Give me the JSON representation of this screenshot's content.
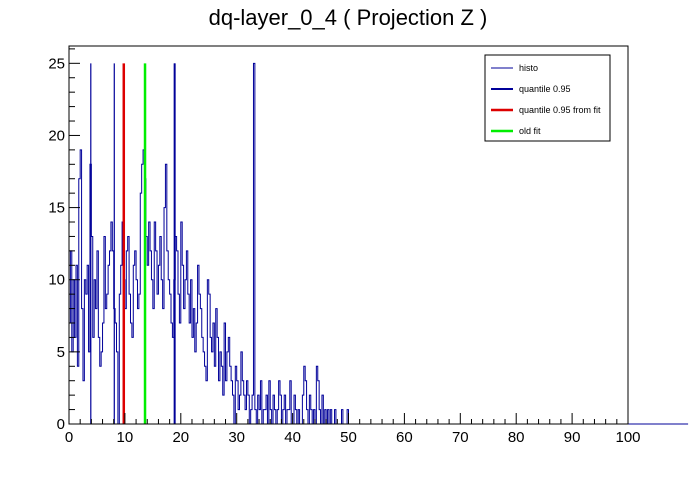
{
  "chart_data": {
    "type": "histogram",
    "title": "dq-layer_0_4 ( Projection Z )",
    "xlabel": "",
    "ylabel": "",
    "xlim": [
      0,
      100
    ],
    "ylim": [
      0,
      26.2
    ],
    "x_ticks": [
      "0",
      "10",
      "20",
      "30",
      "40",
      "50",
      "60",
      "70",
      "80",
      "90",
      "100"
    ],
    "y_ticks": [
      "0",
      "5",
      "10",
      "15",
      "20",
      "25"
    ],
    "grid": false,
    "legend_position": "top-right",
    "bin_width": 0.25,
    "histogram": {
      "name": "histo",
      "color": "#000099",
      "x_start": 0,
      "values": [
        7,
        12,
        5,
        10,
        6,
        11,
        4,
        17,
        19,
        8,
        3,
        10,
        9,
        11,
        5,
        18,
        13,
        6,
        10,
        8,
        12,
        6,
        4,
        5,
        7,
        13,
        8,
        9,
        11,
        12,
        14,
        12,
        8,
        7,
        5,
        0,
        9,
        11,
        14,
        10,
        8,
        12,
        13,
        9,
        7,
        6,
        11,
        12,
        10,
        8,
        9,
        16,
        18,
        19,
        17,
        13,
        11,
        14,
        12,
        10,
        8,
        14,
        12,
        9,
        11,
        13,
        10,
        8,
        15,
        18,
        12,
        10,
        9,
        7,
        6,
        10,
        13,
        12,
        9,
        7,
        14,
        11,
        8,
        10,
        12,
        9,
        7,
        10,
        6,
        8,
        5,
        7,
        11,
        9,
        8,
        6,
        5,
        4,
        3,
        10,
        9,
        6,
        5,
        7,
        4,
        8,
        6,
        3,
        5,
        4,
        2,
        7,
        3,
        5,
        6,
        4,
        3,
        2,
        0,
        4,
        3,
        1,
        2,
        5,
        3,
        2,
        1,
        3,
        2,
        0,
        1,
        2,
        25,
        1,
        0,
        2,
        1,
        3,
        0,
        1,
        1,
        2,
        0,
        3,
        1,
        0,
        2,
        1,
        0,
        1,
        3,
        2,
        0,
        1,
        2,
        0,
        1,
        1,
        3,
        0,
        0,
        2,
        1,
        0,
        1,
        0,
        0,
        2,
        4,
        3,
        1,
        0,
        2,
        1,
        0,
        1,
        0,
        4,
        3,
        1,
        0,
        2,
        0,
        1,
        0,
        1,
        0,
        1,
        0,
        0,
        1,
        0,
        0,
        0,
        0,
        1,
        0,
        0,
        0,
        1,
        0,
        0,
        0,
        0,
        0,
        0,
        0,
        0,
        0,
        0,
        0,
        0,
        0,
        0,
        0,
        0,
        0,
        0,
        0,
        0,
        0,
        0,
        0,
        0,
        0,
        0,
        0,
        0,
        0,
        0,
        0,
        0,
        0,
        0,
        0,
        0,
        0,
        0,
        0,
        0,
        0,
        0,
        0,
        0,
        0,
        0,
        0,
        0,
        0,
        0,
        0,
        0,
        0,
        0,
        0,
        0,
        0,
        0,
        0,
        0,
        0,
        0,
        0,
        0,
        0,
        0,
        0,
        0,
        0,
        0,
        0,
        0,
        0,
        0,
        0,
        0,
        0,
        0,
        0,
        0,
        0,
        0,
        0,
        0,
        0,
        0,
        0,
        0,
        0,
        0,
        0,
        0,
        0,
        0,
        0,
        0,
        0,
        0,
        0,
        0,
        0,
        0,
        0,
        0,
        0,
        0,
        0,
        0,
        0,
        0,
        0,
        0,
        0,
        0,
        0,
        0,
        0,
        0,
        0,
        0,
        0,
        0,
        0,
        0,
        0,
        0,
        0,
        0,
        0,
        0,
        0,
        0,
        0,
        0,
        0,
        0,
        0,
        0,
        0,
        0,
        0,
        0,
        0,
        0,
        0,
        0,
        0,
        0,
        0,
        0,
        0,
        0,
        0,
        0,
        0,
        0,
        0,
        0,
        0,
        0,
        0,
        0,
        0,
        0,
        0,
        0,
        0,
        0,
        0,
        0,
        0,
        0,
        0,
        0,
        0,
        0,
        0,
        0,
        0,
        0,
        0,
        0,
        0,
        0,
        0,
        0,
        0,
        0,
        0,
        0,
        0,
        0,
        0,
        0,
        0,
        0,
        0,
        0,
        0,
        0,
        0,
        0,
        0,
        0,
        0,
        0,
        0,
        0,
        0,
        0,
        0,
        0,
        0,
        0,
        0,
        0,
        0,
        0,
        0,
        0,
        0,
        0,
        0,
        0,
        0,
        0,
        0,
        0,
        0,
        0,
        0,
        0,
        0,
        0,
        0,
        0,
        0,
        0,
        0,
        0,
        0,
        0,
        0
      ]
    },
    "spikes": [
      {
        "x": 3.9,
        "y": 25
      },
      {
        "x": 8.1,
        "y": 25
      },
      {
        "x": 18.9,
        "y": 25
      }
    ],
    "vertical_lines": [
      {
        "name": "quantile 0.95",
        "x": 18.9,
        "y": 25,
        "color": "#000099",
        "width": 2
      },
      {
        "name": "quantile 0.95 from fit",
        "x": 9.8,
        "y": 25,
        "color": "#dd0000",
        "width": 2.5
      },
      {
        "name": "old fit",
        "x": 13.6,
        "y": 25,
        "color": "#00ee00",
        "width": 2.5
      }
    ],
    "legend": [
      {
        "label": "histo",
        "color": "#000099",
        "width": 1
      },
      {
        "label": "quantile 0.95",
        "color": "#000099",
        "width": 2
      },
      {
        "label": "quantile 0.95 from fit",
        "color": "#dd0000",
        "width": 2.5
      },
      {
        "label": "old fit",
        "color": "#00ee00",
        "width": 2.5
      }
    ]
  }
}
